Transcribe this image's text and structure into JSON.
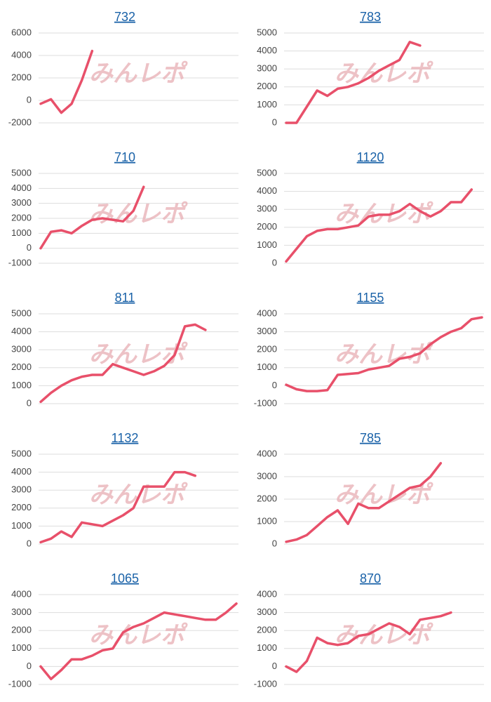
{
  "watermark": "みんレポ",
  "chart_data": [
    {
      "type": "line",
      "title": "732",
      "color": "#e8506a",
      "ylim": [
        -2000,
        6000
      ],
      "yticks": [
        -2000,
        0,
        2000,
        4000,
        6000
      ],
      "grid": true,
      "values": [
        -300,
        100,
        -1100,
        -300,
        1800,
        4400,
        null,
        null,
        null,
        null,
        null,
        null,
        null,
        null,
        null,
        null,
        null,
        null,
        null,
        null
      ]
    },
    {
      "type": "line",
      "title": "783",
      "color": "#e8506a",
      "ylim": [
        0,
        5000
      ],
      "yticks": [
        0,
        1000,
        2000,
        3000,
        4000,
        5000
      ],
      "grid": true,
      "values": [
        0,
        0,
        900,
        1800,
        1500,
        1900,
        2000,
        2200,
        2500,
        2900,
        3200,
        3500,
        4500,
        4300,
        null,
        null,
        null,
        null,
        null,
        null
      ]
    },
    {
      "type": "line",
      "title": "710",
      "color": "#e8506a",
      "ylim": [
        -1000,
        5000
      ],
      "yticks": [
        -1000,
        0,
        1000,
        2000,
        3000,
        4000,
        5000
      ],
      "grid": true,
      "values": [
        0,
        1100,
        1200,
        1000,
        1500,
        1900,
        2000,
        1900,
        1800,
        2500,
        4100,
        null,
        null,
        null,
        null,
        null,
        null,
        null,
        null,
        null
      ]
    },
    {
      "type": "line",
      "title": "1120",
      "color": "#e8506a",
      "ylim": [
        0,
        5000
      ],
      "yticks": [
        0,
        1000,
        2000,
        3000,
        4000,
        5000
      ],
      "grid": true,
      "values": [
        100,
        800,
        1500,
        1800,
        1900,
        1900,
        2000,
        2100,
        2600,
        2700,
        2700,
        2900,
        3300,
        2900,
        2600,
        2900,
        3400,
        3400,
        4100,
        null
      ]
    },
    {
      "type": "line",
      "title": "811",
      "color": "#e8506a",
      "ylim": [
        0,
        5000
      ],
      "yticks": [
        0,
        1000,
        2000,
        3000,
        4000,
        5000
      ],
      "grid": true,
      "values": [
        100,
        600,
        1000,
        1300,
        1500,
        1600,
        1600,
        2200,
        2000,
        1800,
        1600,
        1800,
        2100,
        2700,
        4300,
        4400,
        4100,
        null,
        null,
        null
      ]
    },
    {
      "type": "line",
      "title": "1155",
      "color": "#e8506a",
      "ylim": [
        -1000,
        4000
      ],
      "yticks": [
        -1000,
        0,
        1000,
        2000,
        3000,
        4000
      ],
      "grid": true,
      "values": [
        50,
        -200,
        -300,
        -300,
        -250,
        600,
        650,
        700,
        900,
        1000,
        1100,
        1500,
        1600,
        1800,
        2300,
        2700,
        3000,
        3200,
        3700,
        3800
      ]
    },
    {
      "type": "line",
      "title": "1132",
      "color": "#e8506a",
      "ylim": [
        0,
        5000
      ],
      "yticks": [
        0,
        1000,
        2000,
        3000,
        4000,
        5000
      ],
      "grid": true,
      "values": [
        100,
        300,
        700,
        400,
        1200,
        1100,
        1000,
        1300,
        1600,
        2000,
        3200,
        3200,
        3200,
        4000,
        4000,
        3800,
        null,
        null,
        null,
        null
      ]
    },
    {
      "type": "line",
      "title": "785",
      "color": "#e8506a",
      "ylim": [
        0,
        4000
      ],
      "yticks": [
        0,
        1000,
        2000,
        3000,
        4000
      ],
      "grid": true,
      "values": [
        100,
        200,
        400,
        800,
        1200,
        1500,
        900,
        1800,
        1600,
        1600,
        1900,
        2200,
        2500,
        2600,
        3000,
        3600,
        null,
        null,
        null,
        null
      ]
    },
    {
      "type": "line",
      "title": "1065",
      "color": "#e8506a",
      "ylim": [
        -1000,
        4000
      ],
      "yticks": [
        -1000,
        0,
        1000,
        2000,
        3000,
        4000
      ],
      "grid": true,
      "values": [
        0,
        -700,
        -200,
        400,
        400,
        600,
        900,
        1000,
        1900,
        2200,
        2400,
        2700,
        3000,
        2900,
        2800,
        2700,
        2600,
        2600,
        3000,
        3500
      ]
    },
    {
      "type": "line",
      "title": "870",
      "color": "#e8506a",
      "ylim": [
        -1000,
        4000
      ],
      "yticks": [
        -1000,
        0,
        1000,
        2000,
        3000,
        4000
      ],
      "grid": true,
      "values": [
        0,
        -300,
        300,
        1600,
        1300,
        1200,
        1300,
        1700,
        1800,
        2100,
        2400,
        2200,
        1800,
        2600,
        2700,
        2800,
        3000,
        null,
        null,
        null
      ]
    }
  ]
}
